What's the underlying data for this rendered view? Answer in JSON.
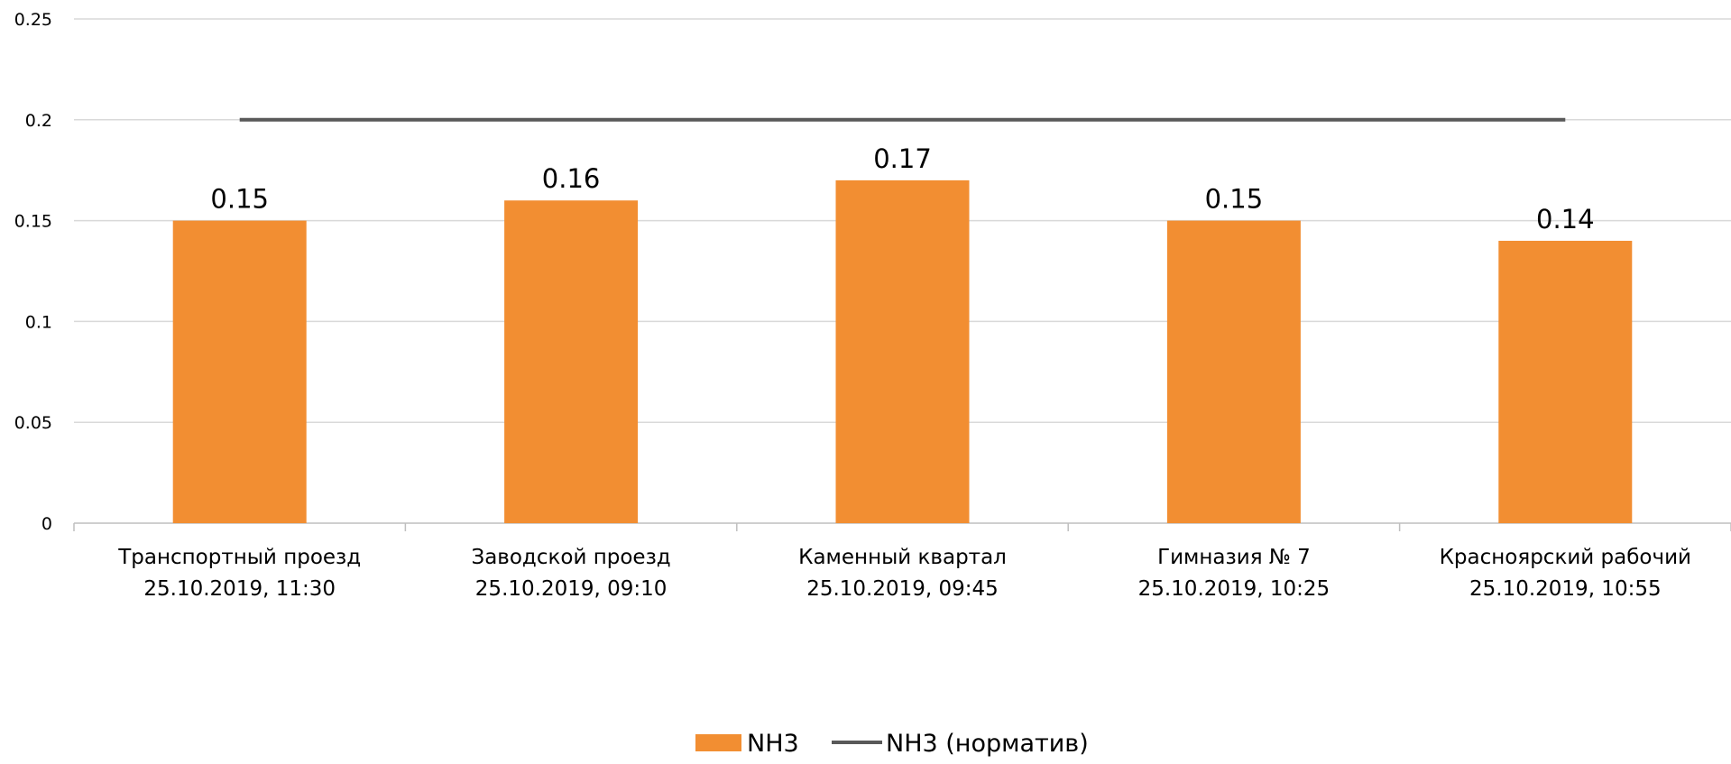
{
  "chart_data": {
    "type": "bar",
    "title": "",
    "xlabel": "",
    "ylabel": "",
    "ylim": [
      0,
      0.25
    ],
    "yticks": [
      0,
      0.05,
      0.1,
      0.15,
      0.2,
      0.25
    ],
    "ytick_labels": [
      "0",
      "0.05",
      "0.1",
      "0.15",
      "0.2",
      "0.25"
    ],
    "grid": true,
    "legend_position": "bottom-center",
    "categories": [
      [
        "Транспортный проезд",
        "25.10.2019, 11:30"
      ],
      [
        "Заводской проезд",
        "25.10.2019, 09:10"
      ],
      [
        "Каменный квартал",
        "25.10.2019, 09:45"
      ],
      [
        "Гимназия № 7",
        "25.10.2019, 10:25"
      ],
      [
        "Красноярский рабочий",
        "25.10.2019, 10:55"
      ]
    ],
    "series": [
      {
        "name": "NH3",
        "type": "bar",
        "color": "#F28E32",
        "values": [
          0.15,
          0.16,
          0.17,
          0.15,
          0.14
        ],
        "data_labels": [
          "0.15",
          "0.16",
          "0.17",
          "0.15",
          "0.14"
        ]
      },
      {
        "name": "NH3 (норматив)",
        "type": "line",
        "color": "#595959",
        "values": [
          0.2,
          0.2,
          0.2,
          0.2,
          0.2
        ]
      }
    ],
    "colors": {
      "grid": "#D9D9D9",
      "axis": "#BFBFBF"
    }
  }
}
